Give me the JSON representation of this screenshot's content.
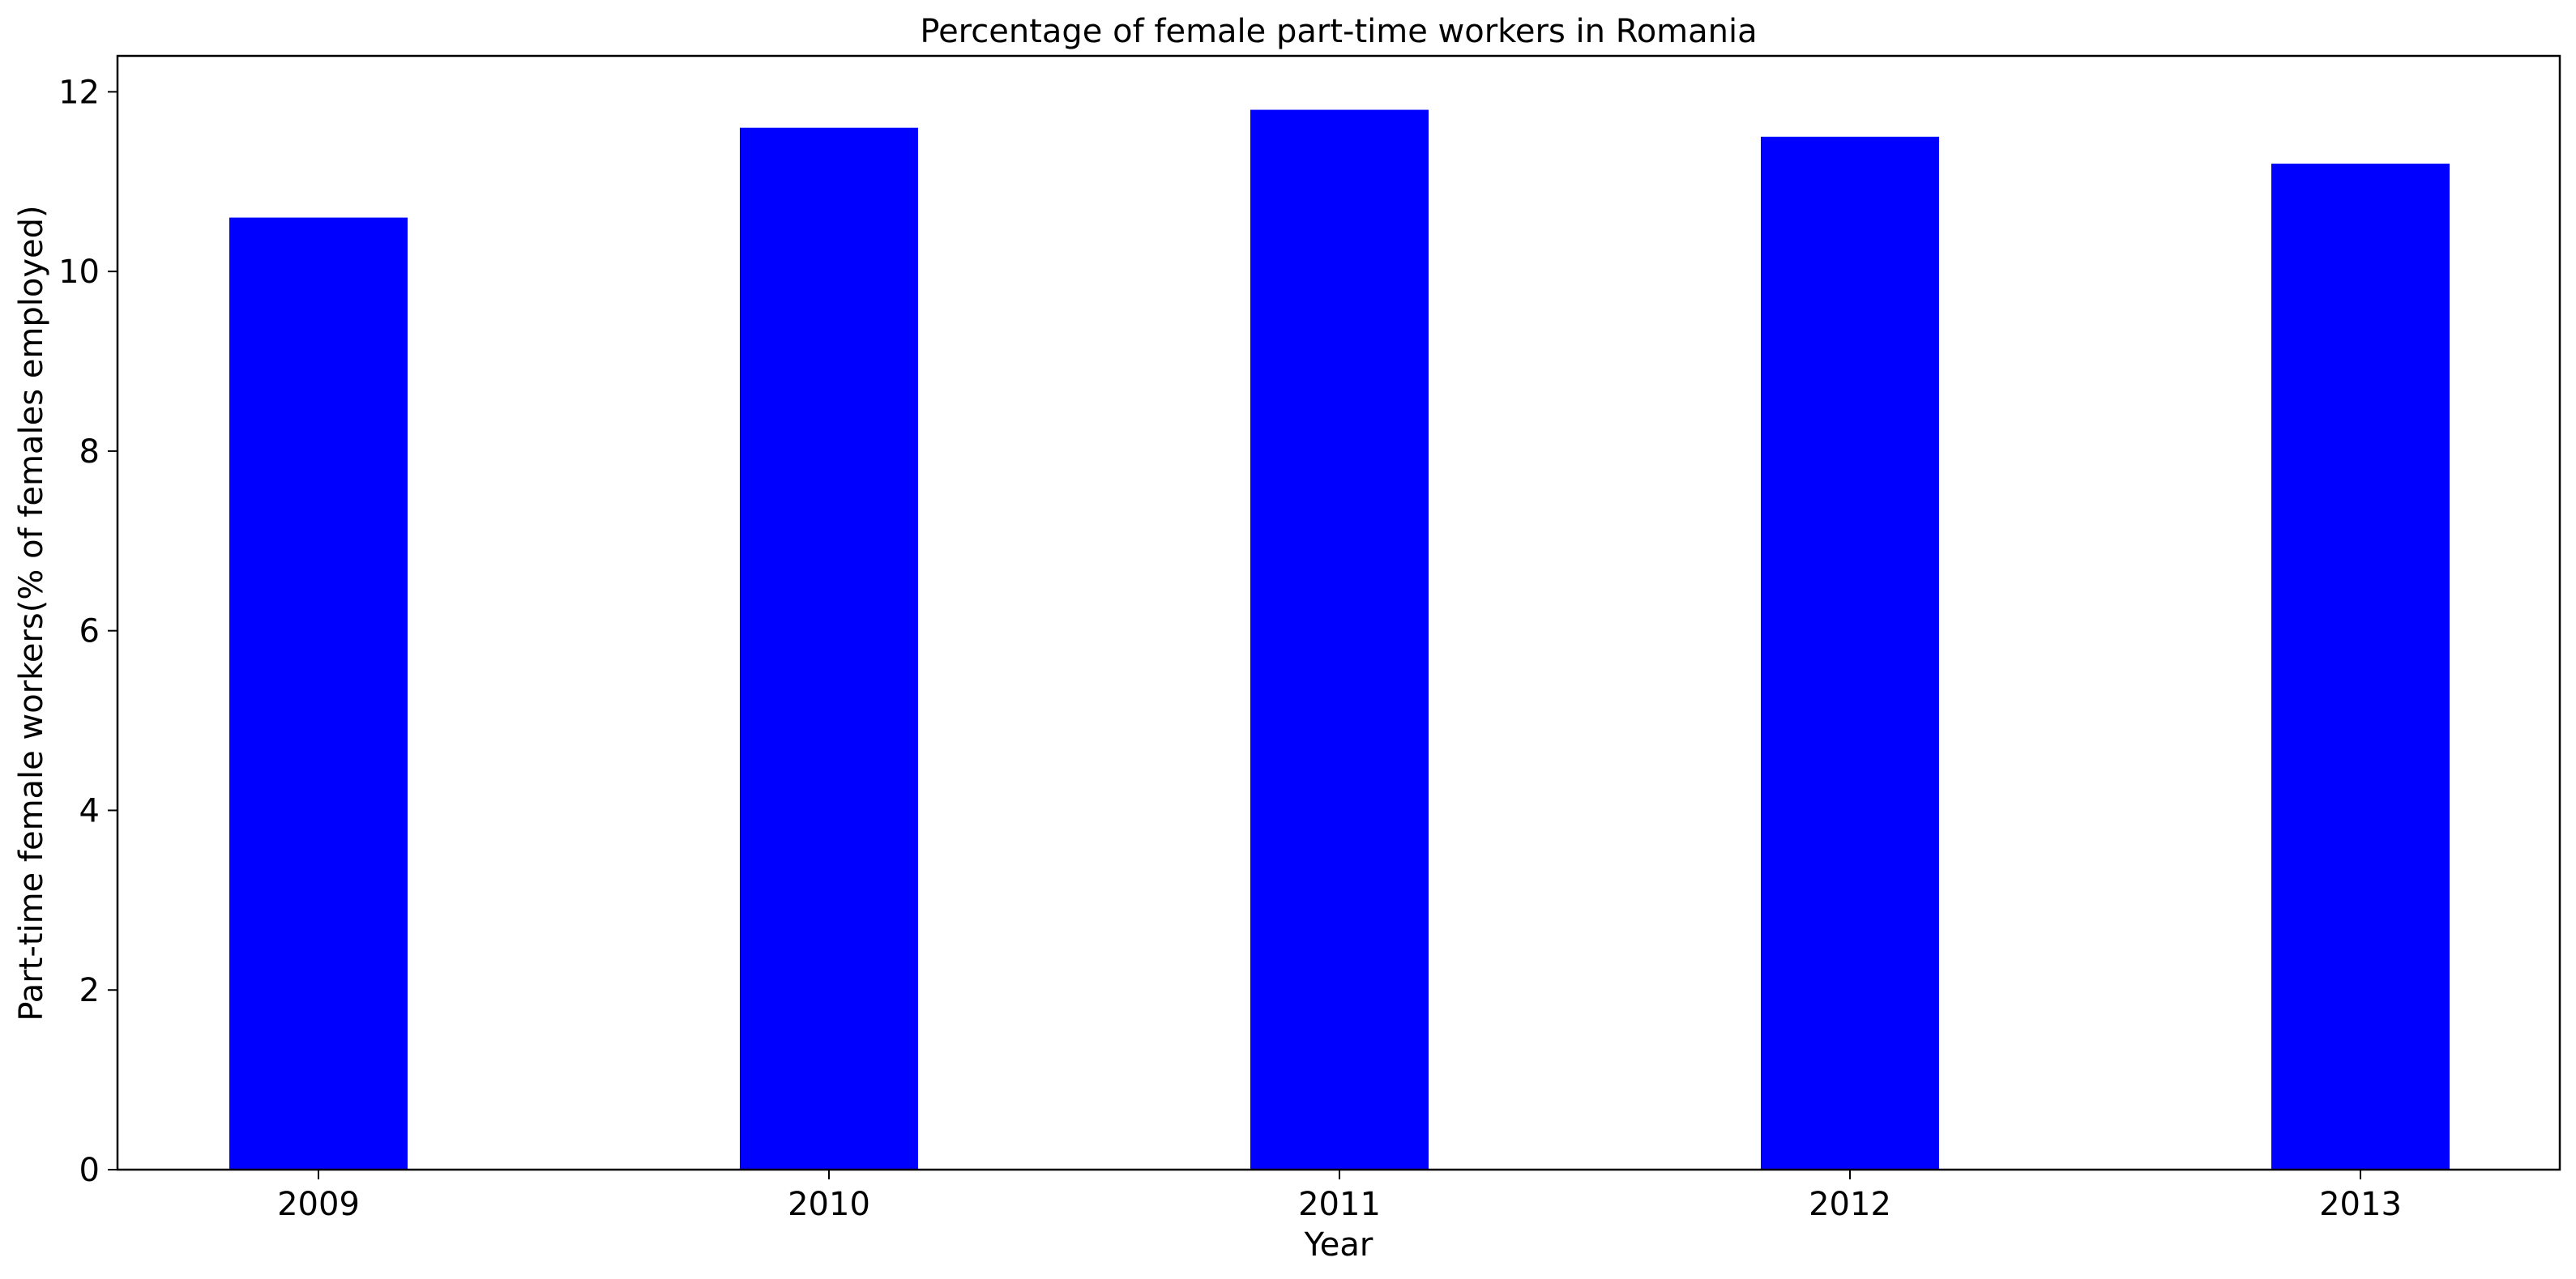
{
  "chart_data": {
    "type": "bar",
    "title": "Percentage of female part-time workers in Romania",
    "xlabel": "Year",
    "ylabel": "Part-time female workers(% of females employed)",
    "categories": [
      "2009",
      "2010",
      "2011",
      "2012",
      "2013"
    ],
    "values": [
      10.6,
      11.6,
      11.8,
      11.5,
      11.2
    ],
    "ylim": [
      0,
      12.4
    ],
    "yticks": [
      0,
      2,
      4,
      6,
      8,
      10,
      12
    ],
    "bar_color": "#0000ff",
    "grid": false,
    "legend": "none"
  }
}
